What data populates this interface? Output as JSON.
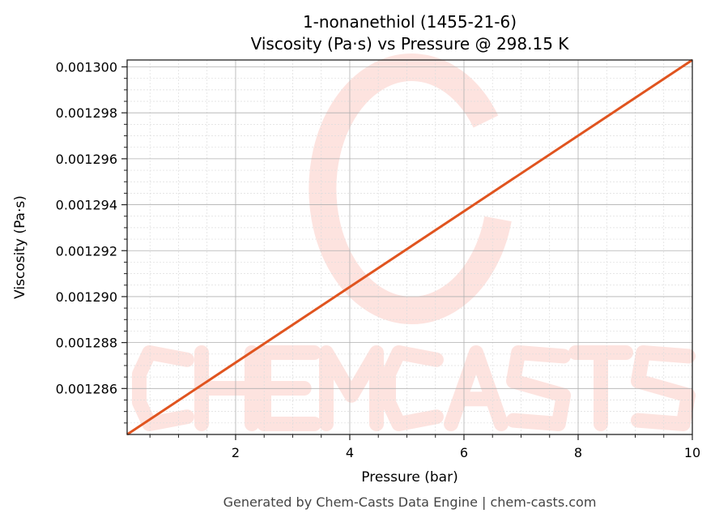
{
  "chart_data": {
    "type": "line",
    "title": "1-nonanethiol (1455-21-6)",
    "subtitle": "Viscosity (Pa·s) vs Pressure @ 298.15 K",
    "xlabel": "Pressure (bar)",
    "ylabel": "Viscosity (Pa·s)",
    "xlim": [
      0.1,
      10
    ],
    "ylim": [
      0.001284,
      0.0013003
    ],
    "xticks": [
      2,
      4,
      6,
      8,
      10
    ],
    "xtick_labels": [
      "2",
      "4",
      "6",
      "8",
      "10"
    ],
    "yticks": [
      0.001286,
      0.001288,
      0.00129,
      0.001292,
      0.001294,
      0.001296,
      0.001298,
      0.0013
    ],
    "ytick_labels": [
      "0.001286",
      "0.001288",
      "0.001290",
      "0.001292",
      "0.001294",
      "0.001296",
      "0.001298",
      "0.001300"
    ],
    "grid": true,
    "minor_grid": true,
    "series": [
      {
        "x": [
          0.1,
          10
        ],
        "y": [
          0.001284,
          0.0013003
        ],
        "color": "#e0541f"
      }
    ],
    "footer": "Generated by Chem-Casts Data Engine | chem-casts.com",
    "watermark": "CHEMCASTS",
    "colors": {
      "line": "#e0541f",
      "watermark": "#fde3df",
      "grid": "#b0b0b0"
    }
  }
}
